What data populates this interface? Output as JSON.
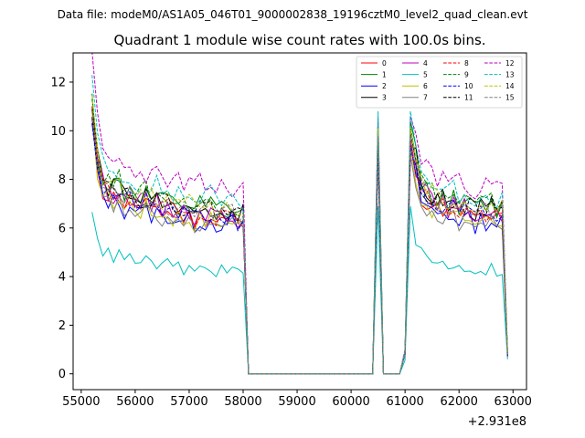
{
  "suptitle": "Data file: modeM0/AS1A05_046T01_9000002838_19196cztM0_level2_quad_clean.evt",
  "chart_data": {
    "type": "line",
    "title": "Quadrant 1 module wise count rates with 100.0s bins.",
    "xlabel": "",
    "ylabel": "",
    "x_offset_label": "+2.931e8",
    "xlim": [
      54850,
      63250
    ],
    "ylim": [
      -0.65,
      13.2
    ],
    "x_ticks": [
      55000,
      56000,
      57000,
      58000,
      59000,
      60000,
      61000,
      62000,
      63000
    ],
    "x_tick_labels": [
      "55000",
      "56000",
      "57000",
      "58000",
      "59000",
      "60000",
      "61000",
      "62000",
      "63000"
    ],
    "y_ticks": [
      0,
      2,
      4,
      6,
      8,
      10,
      12
    ],
    "y_tick_labels": [
      "0",
      "2",
      "4",
      "6",
      "8",
      "10",
      "12"
    ],
    "legend_position": "top-right",
    "x_start": 55200,
    "x_step": 100,
    "shape": [
      1,
      0.82,
      0.72,
      0.7,
      0.69,
      0.7,
      0.66,
      0.68,
      0.67,
      0.65,
      0.66,
      0.64,
      0.65,
      0.63,
      0.64,
      0.62,
      0.63,
      0.61,
      0.62,
      0.6,
      0.62,
      0.61,
      0.62,
      0.6,
      0.61,
      0.6,
      0.61,
      0.59,
      0.6,
      0,
      0,
      0,
      0,
      0,
      0,
      0,
      0,
      0,
      0,
      0,
      0,
      0,
      0,
      0,
      0,
      0,
      0,
      0,
      0,
      0,
      0,
      0,
      0,
      1,
      0,
      0,
      0,
      0,
      0.08,
      1,
      0.8,
      0.7,
      0.68,
      0.66,
      0.64,
      0.65,
      0.63,
      0.64,
      0.62,
      0.63,
      0.62,
      0.6,
      0.62,
      0.61,
      0.62,
      0.6,
      0.61,
      0.06
    ],
    "series": [
      {
        "name": "0",
        "color": "#ff0000",
        "dash": "solid",
        "base": 10.5,
        "spike": 8.8,
        "end": 0.7,
        "seed": 11
      },
      {
        "name": "1",
        "color": "#008000",
        "dash": "solid",
        "base": 11.2,
        "spike": 10.4,
        "end": 0.8,
        "seed": 12
      },
      {
        "name": "2",
        "color": "#0000ff",
        "dash": "solid",
        "base": 10.2,
        "spike": 9.1,
        "end": 0.7,
        "seed": 13
      },
      {
        "name": "3",
        "color": "#000000",
        "dash": "solid",
        "base": 11.0,
        "spike": 9.3,
        "end": 0.7,
        "seed": 14
      },
      {
        "name": "4",
        "color": "#bf00bf",
        "dash": "solid",
        "base": 10.8,
        "spike": 9.6,
        "end": 0.8,
        "seed": 15
      },
      {
        "name": "5",
        "color": "#00bfbf",
        "dash": "solid",
        "base": 7.0,
        "spike": 6.9,
        "end": 0.6,
        "seed": 16
      },
      {
        "name": "6",
        "color": "#bfbf00",
        "dash": "solid",
        "base": 10.3,
        "spike": 9.4,
        "end": 0.7,
        "seed": 17
      },
      {
        "name": "7",
        "color": "#808080",
        "dash": "solid",
        "base": 10.0,
        "spike": 9.0,
        "end": 0.7,
        "seed": 18
      },
      {
        "name": "8",
        "color": "#ff0000",
        "dash": "dashed",
        "base": 10.7,
        "spike": 9.7,
        "end": 0.8,
        "seed": 19
      },
      {
        "name": "9",
        "color": "#008000",
        "dash": "dashed",
        "base": 11.4,
        "spike": 10.2,
        "end": 0.8,
        "seed": 20
      },
      {
        "name": "10",
        "color": "#0000ff",
        "dash": "dashed",
        "base": 10.6,
        "spike": 9.4,
        "end": 0.7,
        "seed": 21
      },
      {
        "name": "11",
        "color": "#000000",
        "dash": "dashed",
        "base": 11.1,
        "spike": 9.9,
        "end": 0.8,
        "seed": 22
      },
      {
        "name": "12",
        "color": "#bf00bf",
        "dash": "dashed",
        "base": 12.6,
        "spike": 10.6,
        "end": 0.9,
        "seed": 23
      },
      {
        "name": "13",
        "color": "#00bfbf",
        "dash": "dashed",
        "base": 11.9,
        "spike": 10.8,
        "end": 0.9,
        "seed": 24
      },
      {
        "name": "14",
        "color": "#bfbf00",
        "dash": "dashed",
        "base": 11.3,
        "spike": 10.1,
        "end": 0.8,
        "seed": 25
      },
      {
        "name": "15",
        "color": "#808080",
        "dash": "dashed",
        "base": 10.9,
        "spike": 9.8,
        "end": 0.8,
        "seed": 26
      }
    ]
  }
}
